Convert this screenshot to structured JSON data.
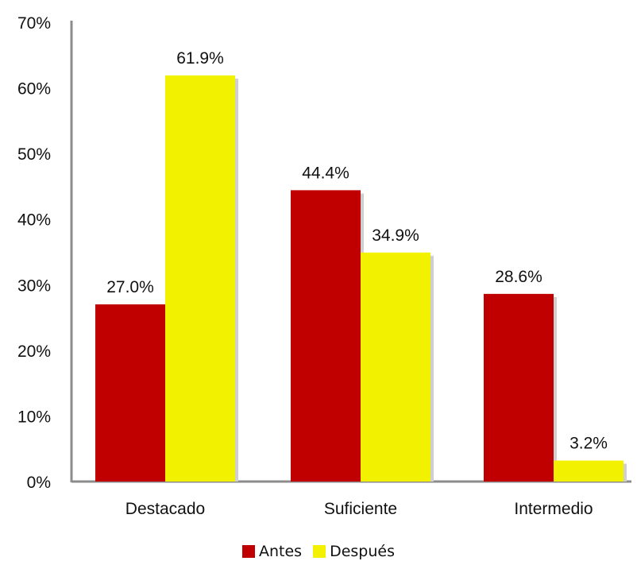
{
  "chart_data": {
    "type": "bar",
    "categories": [
      "Destacado",
      "Suficiente",
      "Intermedio"
    ],
    "series": [
      {
        "name": "Antes",
        "values": [
          27.0,
          44.4,
          28.6
        ],
        "labels": [
          "27.0%",
          "44.4%",
          "28.6%"
        ],
        "color": "#c00000"
      },
      {
        "name": "Después",
        "values": [
          61.9,
          34.9,
          3.2
        ],
        "labels": [
          "61.9%",
          "34.9%",
          "3.2%"
        ],
        "color": "#f2f200"
      }
    ],
    "y_ticks": [
      "0%",
      "10%",
      "20%",
      "30%",
      "40%",
      "50%",
      "60%",
      "70%"
    ],
    "ylim": [
      0,
      70
    ],
    "grid": false,
    "legend_position": "bottom"
  }
}
